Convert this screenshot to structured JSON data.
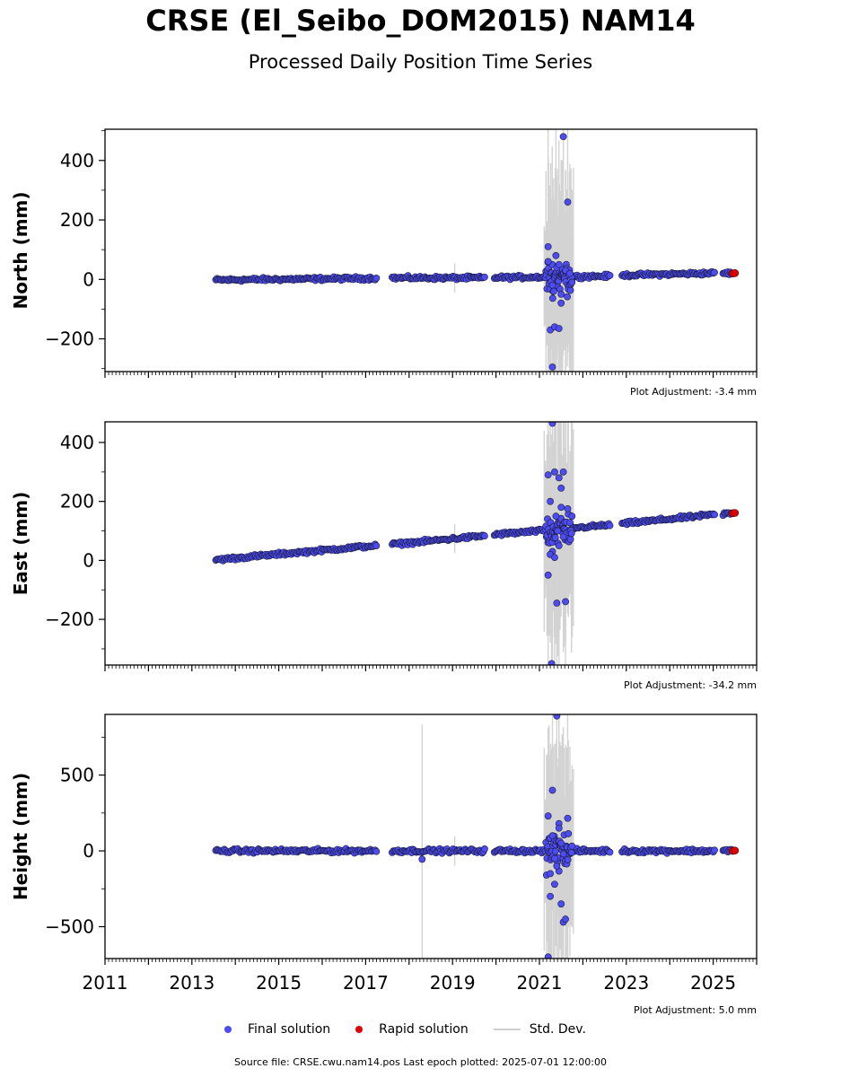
{
  "title": "CRSE (El_Seibo_DOM2015) NAM14",
  "subtitle": "Processed Daily Position Time Series",
  "colors": {
    "final": "#4c4cf2",
    "rapid": "#e00000",
    "stddev": "#d3d3d3",
    "edge": "#1a1a3a"
  },
  "legend": {
    "final": "Final solution",
    "rapid": "Rapid solution",
    "stddev": "Std. Dev."
  },
  "source": "Source file: CRSE.cwu.nam14.pos  Last epoch plotted: 2025-07-01 12:00:00",
  "chart_data": [
    {
      "type": "scatter",
      "ylabel": "North (mm)",
      "adjustment": "Plot Adjustment: -3.4 mm",
      "xlim": [
        2011,
        2026
      ],
      "ylim": [
        -310,
        505
      ],
      "yticks": [
        -200,
        0,
        200,
        400
      ],
      "ytick_labels": [
        "−200",
        "0",
        "200",
        "400"
      ],
      "trend": [
        [
          2013.55,
          -2
        ],
        [
          2017.2,
          4
        ],
        [
          2017.65,
          5
        ],
        [
          2019.7,
          5
        ],
        [
          2020.0,
          6
        ],
        [
          2021.0,
          8
        ],
        [
          2021.95,
          10
        ],
        [
          2022.6,
          11
        ],
        [
          2022.95,
          14
        ],
        [
          2025.0,
          21
        ],
        [
          2025.5,
          21
        ]
      ],
      "gaps": [
        [
          2017.25,
          2017.6
        ],
        [
          2019.75,
          2019.95
        ],
        [
          2022.65,
          2022.9
        ],
        [
          2025.05,
          2025.2
        ]
      ],
      "noise": 4,
      "outliers": [
        [
          2021.2,
          110
        ],
        [
          2021.25,
          -170
        ],
        [
          2021.3,
          -295
        ],
        [
          2021.35,
          -160
        ],
        [
          2021.38,
          80
        ],
        [
          2021.45,
          -165
        ],
        [
          2021.5,
          -80
        ],
        [
          2021.55,
          480
        ],
        [
          2021.65,
          260
        ],
        [
          2021.2,
          60
        ],
        [
          2021.4,
          40
        ],
        [
          2021.3,
          -20
        ],
        [
          2021.6,
          30
        ],
        [
          2021.5,
          -50
        ],
        [
          2021.7,
          20
        ],
        [
          2021.45,
          50
        ],
        [
          2021.33,
          -40
        ]
      ],
      "rapid": [
        [
          2025.45,
          20
        ],
        [
          2025.5,
          21
        ]
      ],
      "xtick_labels": []
    },
    {
      "type": "scatter",
      "ylabel": "East (mm)",
      "adjustment": "Plot Adjustment: -34.2 mm",
      "xlim": [
        2011,
        2026
      ],
      "ylim": [
        -355,
        470
      ],
      "yticks": [
        -200,
        0,
        200,
        400
      ],
      "ytick_labels": [
        "−200",
        "0",
        "200",
        "400"
      ],
      "trend": [
        [
          2013.55,
          2
        ],
        [
          2017.2,
          50
        ],
        [
          2017.65,
          55
        ],
        [
          2019.7,
          83
        ],
        [
          2020.0,
          88
        ],
        [
          2021.0,
          100
        ],
        [
          2021.95,
          112
        ],
        [
          2022.6,
          120
        ],
        [
          2022.95,
          125
        ],
        [
          2025.0,
          155
        ],
        [
          2025.5,
          160
        ]
      ],
      "gaps": [
        [
          2017.25,
          2017.6
        ],
        [
          2019.75,
          2019.95
        ],
        [
          2022.65,
          2022.9
        ],
        [
          2025.05,
          2025.2
        ]
      ],
      "noise": 4,
      "outliers": [
        [
          2021.2,
          290
        ],
        [
          2021.25,
          200
        ],
        [
          2021.28,
          -350
        ],
        [
          2021.3,
          465
        ],
        [
          2021.35,
          300
        ],
        [
          2021.4,
          -145
        ],
        [
          2021.45,
          280
        ],
        [
          2021.5,
          245
        ],
        [
          2021.55,
          300
        ],
        [
          2021.6,
          -140
        ],
        [
          2021.2,
          -50
        ],
        [
          2021.3,
          30
        ],
        [
          2021.38,
          150
        ],
        [
          2021.45,
          50
        ],
        [
          2021.5,
          180
        ],
        [
          2021.65,
          175
        ],
        [
          2021.25,
          20
        ],
        [
          2021.42,
          100
        ],
        [
          2021.35,
          10
        ],
        [
          2021.55,
          80
        ]
      ],
      "rapid": [
        [
          2025.45,
          160
        ],
        [
          2025.5,
          161
        ]
      ],
      "xtick_labels": []
    },
    {
      "type": "scatter",
      "ylabel": "Height (mm)",
      "adjustment": "Plot Adjustment: 5.0 mm",
      "xlim": [
        2011,
        2026
      ],
      "ylim": [
        -710,
        900
      ],
      "yticks": [
        -500,
        0,
        500
      ],
      "ytick_labels": [
        "−500",
        "0",
        "500"
      ],
      "trend": [
        [
          2013.55,
          0
        ],
        [
          2017.2,
          0
        ],
        [
          2017.65,
          0
        ],
        [
          2019.7,
          0
        ],
        [
          2020.0,
          0
        ],
        [
          2021.0,
          0
        ],
        [
          2021.95,
          0
        ],
        [
          2022.6,
          0
        ],
        [
          2022.95,
          0
        ],
        [
          2025.0,
          0
        ],
        [
          2025.5,
          0
        ]
      ],
      "gaps": [
        [
          2017.25,
          2017.6
        ],
        [
          2019.75,
          2019.95
        ],
        [
          2022.65,
          2022.9
        ],
        [
          2025.05,
          2025.2
        ]
      ],
      "noise": 9,
      "outliers": [
        [
          2021.2,
          230
        ],
        [
          2021.25,
          -300
        ],
        [
          2021.3,
          400
        ],
        [
          2021.35,
          -220
        ],
        [
          2021.4,
          890
        ],
        [
          2021.45,
          180
        ],
        [
          2021.5,
          -350
        ],
        [
          2021.55,
          -470
        ],
        [
          2021.6,
          -450
        ],
        [
          2021.65,
          215
        ],
        [
          2021.2,
          -700
        ],
        [
          2021.3,
          100
        ],
        [
          2021.4,
          -100
        ],
        [
          2021.5,
          50
        ],
        [
          2021.25,
          -150
        ],
        [
          2021.45,
          150
        ],
        [
          2021.35,
          -50
        ],
        [
          2021.55,
          -20
        ],
        [
          2018.3,
          -55
        ]
      ],
      "rapid": [
        [
          2025.45,
          0
        ],
        [
          2025.5,
          2
        ]
      ],
      "xtick_labels": [
        "2011",
        "2013",
        "2015",
        "2017",
        "2019",
        "2021",
        "2023",
        "2025"
      ]
    }
  ]
}
